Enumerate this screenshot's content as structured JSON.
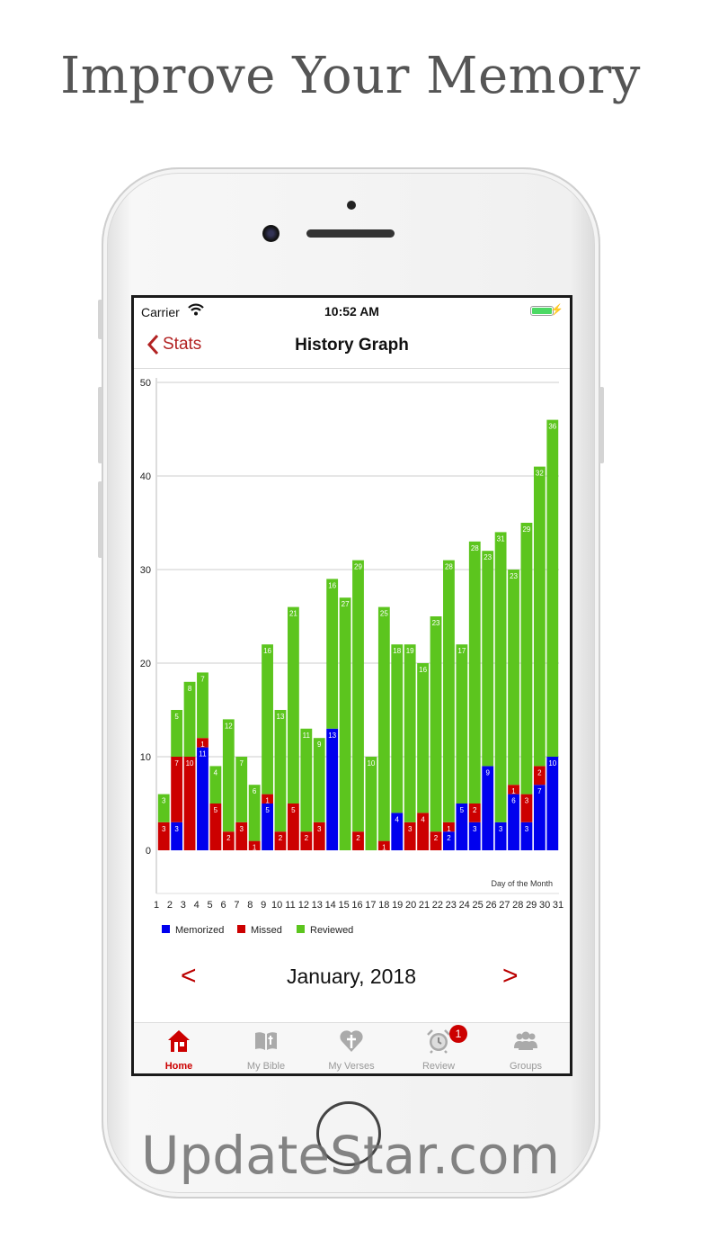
{
  "headline": "Improve Your Memory",
  "watermark": "UpdateStar.com",
  "status_bar": {
    "carrier": "Carrier",
    "time": "10:52 AM"
  },
  "nav": {
    "back_label": "Stats",
    "title": "History Graph"
  },
  "month_nav": {
    "label": "January, 2018",
    "prev": "<",
    "next": ">"
  },
  "tabs": [
    {
      "label": "Home",
      "icon": "home-icon",
      "active": true
    },
    {
      "label": "My Bible",
      "icon": "bible-icon"
    },
    {
      "label": "My Verses",
      "icon": "heart-cross-icon"
    },
    {
      "label": "Review",
      "icon": "alarm-clock-icon",
      "badge": "1"
    },
    {
      "label": "Groups",
      "icon": "groups-icon"
    }
  ],
  "colors": {
    "accent": "#b22222",
    "memorized": "#0000ee",
    "missed": "#cc0000",
    "reviewed": "#5cc51e"
  },
  "chart_data": {
    "type": "bar",
    "stacked": true,
    "xlabel": "Day of the Month",
    "categories": [
      "1",
      "2",
      "3",
      "4",
      "5",
      "6",
      "7",
      "8",
      "9",
      "10",
      "11",
      "12",
      "13",
      "14",
      "15",
      "16",
      "17",
      "18",
      "19",
      "20",
      "21",
      "22",
      "23",
      "24",
      "25",
      "26",
      "27",
      "28",
      "29",
      "30",
      "31"
    ],
    "ylim": [
      0,
      50
    ],
    "yticks": [
      0,
      10,
      20,
      30,
      40,
      50
    ],
    "grid": true,
    "legend_position": "bottom-left",
    "series": [
      {
        "name": "Memorized",
        "color": "#0000ee",
        "values": [
          0,
          3,
          0,
          11,
          0,
          0,
          0,
          0,
          5,
          0,
          0,
          0,
          0,
          13,
          0,
          0,
          0,
          0,
          4,
          0,
          0,
          0,
          2,
          5,
          3,
          9,
          3,
          6,
          3,
          7,
          10
        ]
      },
      {
        "name": "Missed",
        "color": "#cc0000",
        "values": [
          3,
          7,
          10,
          1,
          5,
          2,
          3,
          1,
          1,
          2,
          5,
          2,
          3,
          0,
          0,
          2,
          0,
          1,
          0,
          3,
          4,
          2,
          1,
          0,
          2,
          0,
          0,
          1,
          3,
          2,
          0
        ]
      },
      {
        "name": "Reviewed",
        "color": "#5cc51e",
        "values": [
          3,
          5,
          8,
          7,
          4,
          12,
          7,
          6,
          16,
          13,
          21,
          11,
          9,
          16,
          27,
          29,
          10,
          25,
          18,
          19,
          16,
          23,
          28,
          17,
          28,
          23,
          31,
          23,
          29,
          32,
          36
        ]
      }
    ]
  }
}
